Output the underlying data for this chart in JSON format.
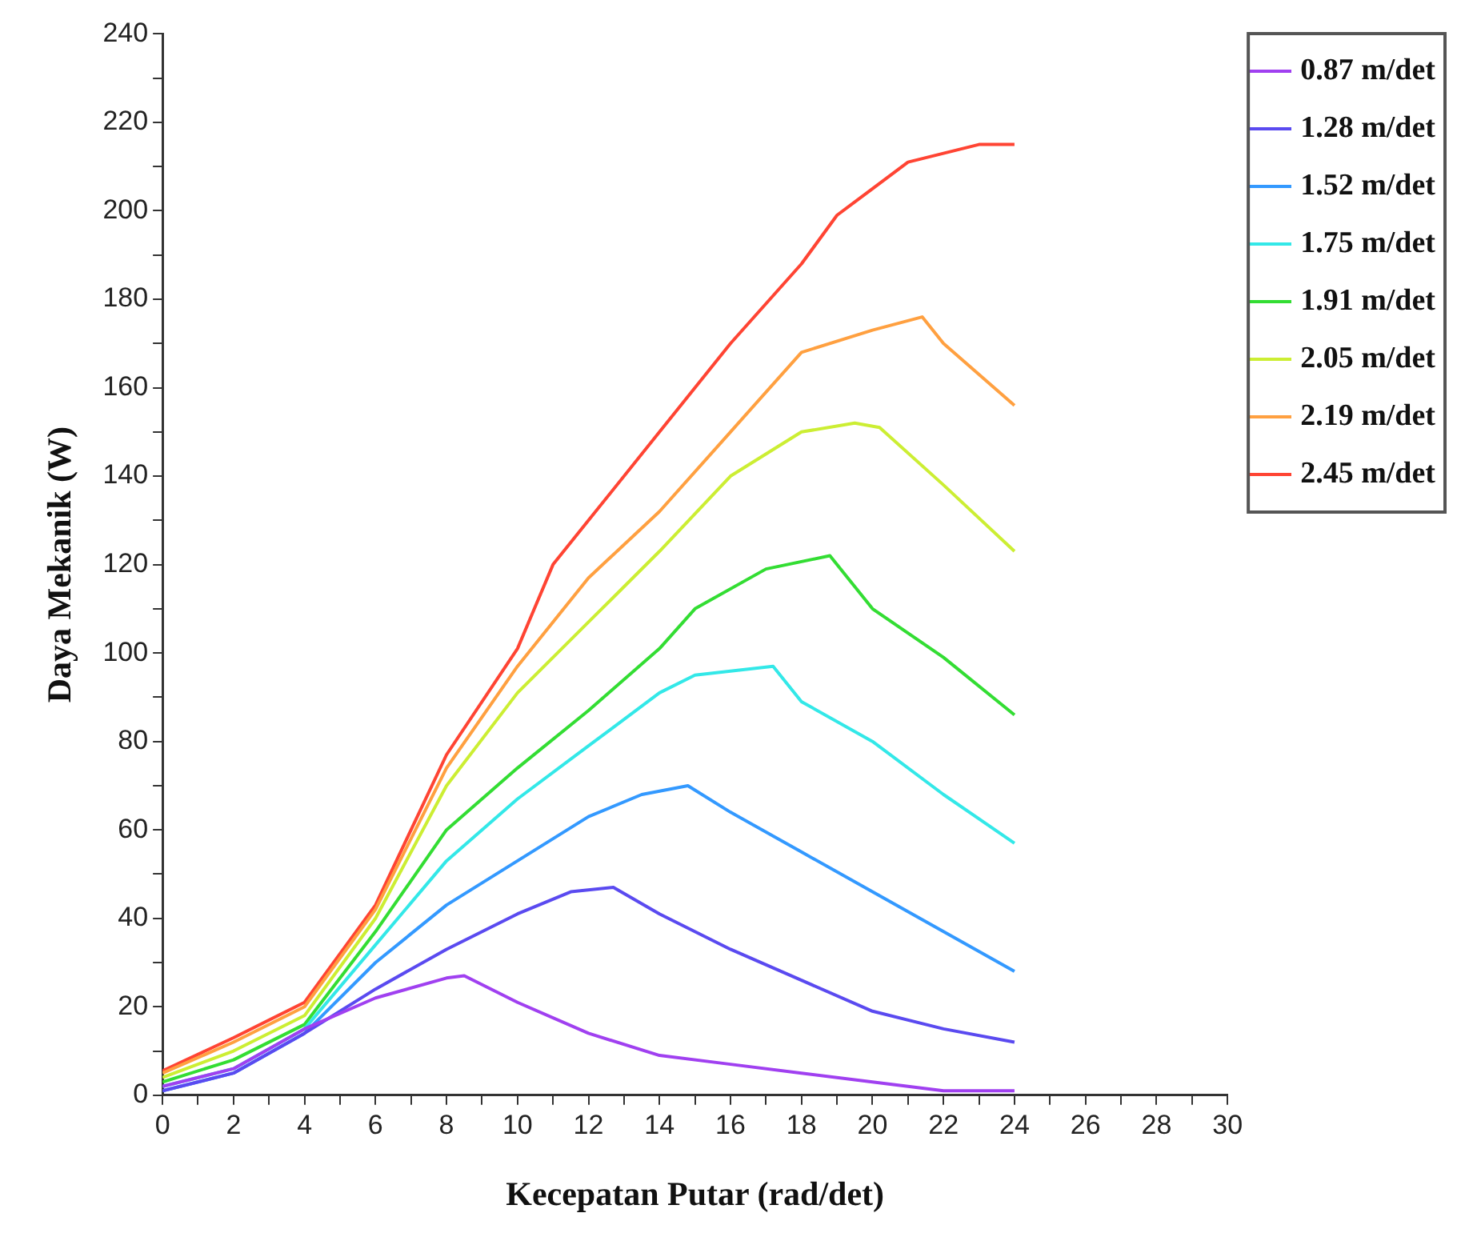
{
  "chart_data": {
    "type": "line",
    "xlabel": "Kecepatan Putar (rad/det)",
    "ylabel": "Daya Mekanik (W)",
    "xlim": [
      0,
      30
    ],
    "xticks": [
      0,
      {
        "value": 1,
        "label": null
      },
      2,
      {
        "value": 3,
        "label": null
      },
      4,
      {
        "value": 5,
        "label": null
      },
      6,
      {
        "value": 7,
        "label": null
      },
      8,
      {
        "value": 9,
        "label": null
      },
      10,
      {
        "value": 11,
        "label": null
      },
      12,
      {
        "value": 13,
        "label": null
      },
      14,
      {
        "value": 15,
        "label": null
      },
      16,
      {
        "value": 17,
        "label": null
      },
      18,
      {
        "value": 19,
        "label": null
      },
      20,
      {
        "value": 21,
        "label": null
      },
      22,
      {
        "value": 23,
        "label": null
      },
      24,
      {
        "value": 25,
        "label": null
      },
      26,
      {
        "value": 27,
        "label": null
      },
      28,
      {
        "value": 29,
        "label": null
      },
      30
    ],
    "ylim": [
      0,
      240
    ],
    "yticks": [
      0,
      {
        "value": 10,
        "label": null
      },
      20,
      {
        "value": 30,
        "label": null
      },
      40,
      {
        "value": 50,
        "label": null
      },
      60,
      {
        "value": 70,
        "label": null
      },
      80,
      {
        "value": 90,
        "label": null
      },
      100,
      {
        "value": 110,
        "label": null
      },
      120,
      {
        "value": 130,
        "label": null
      },
      140,
      {
        "value": 150,
        "label": null
      },
      160,
      {
        "value": 170,
        "label": null
      },
      180,
      {
        "value": 190,
        "label": null
      },
      200,
      {
        "value": 210,
        "label": null
      },
      220,
      {
        "value": 230,
        "label": null
      },
      240
    ],
    "grid": false,
    "legend": "top right",
    "marker": "none",
    "line_style": "solid",
    "series": [
      {
        "name": "0.87 m/det",
        "color": "#a040f0",
        "x": [
          0,
          2,
          4,
          6,
          8,
          8.5,
          10,
          12,
          14,
          16,
          18,
          20,
          22,
          24
        ],
        "values": [
          2,
          6,
          15,
          22,
          26.5,
          27,
          21,
          14,
          9,
          7,
          5,
          3,
          1,
          1
        ]
      },
      {
        "name": "1.28 m/det",
        "color": "#5a4af0",
        "x": [
          0,
          2,
          4,
          6,
          8,
          10,
          11.5,
          12.7,
          14,
          16,
          18,
          20,
          22,
          24
        ],
        "values": [
          1,
          5,
          14,
          24,
          33,
          41,
          46,
          47,
          41,
          33,
          26,
          19,
          15,
          12
        ]
      },
      {
        "name": "1.52 m/det",
        "color": "#3399ff",
        "x": [
          0,
          2,
          4,
          6,
          8,
          10,
          12,
          13.5,
          14.8,
          16,
          18,
          20,
          22,
          24
        ],
        "values": [
          1,
          5,
          14,
          30,
          43,
          53,
          63,
          68,
          70,
          64,
          55,
          46,
          37,
          28
        ]
      },
      {
        "name": "1.75 m/det",
        "color": "#33e8e8",
        "x": [
          0,
          2,
          4,
          6,
          8,
          10,
          12,
          14,
          15,
          17.2,
          18,
          20,
          22,
          24
        ],
        "values": [
          2,
          6,
          15,
          34,
          53,
          67,
          79,
          91,
          95,
          97,
          89,
          80,
          68,
          57
        ]
      },
      {
        "name": "1.91 m/det",
        "color": "#33dd33",
        "x": [
          0,
          2,
          4,
          6,
          8,
          10,
          12,
          14,
          15,
          17,
          18.8,
          20,
          22,
          24
        ],
        "values": [
          3,
          8,
          16,
          37,
          60,
          74,
          87,
          101,
          110,
          119,
          122,
          110,
          99,
          86
        ]
      },
      {
        "name": "2.05 m/det",
        "color": "#ccee33",
        "x": [
          0,
          2,
          4,
          6,
          8,
          10,
          12,
          14,
          16,
          18,
          19.5,
          20.2,
          22,
          24
        ],
        "values": [
          4,
          10,
          18,
          40,
          70,
          91,
          107,
          123,
          140,
          150,
          152,
          151,
          138,
          123
        ]
      },
      {
        "name": "2.19 m/det",
        "color": "#ffa040",
        "x": [
          0,
          2,
          4,
          6,
          8,
          10,
          12,
          14,
          16,
          18,
          20,
          21.4,
          22,
          24
        ],
        "values": [
          5,
          12,
          20,
          42,
          74,
          97,
          117,
          132,
          150,
          168,
          173,
          176,
          170,
          156
        ]
      },
      {
        "name": "2.45 m/det",
        "color": "#ff4433",
        "x": [
          0,
          2,
          4,
          6,
          8,
          10,
          11,
          12,
          14,
          16,
          18,
          19,
          20,
          21,
          22,
          23,
          24
        ],
        "values": [
          5.5,
          13,
          21,
          43,
          77,
          101,
          120,
          130,
          150,
          170,
          188,
          199,
          205,
          211,
          213,
          215,
          215
        ]
      }
    ]
  }
}
